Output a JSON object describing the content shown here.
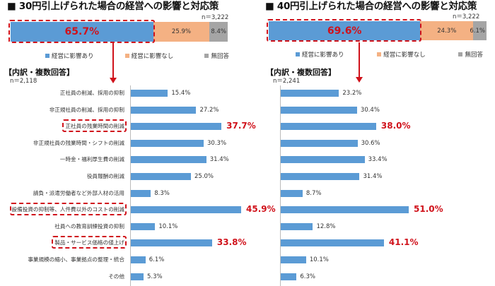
{
  "colors": {
    "blue": "#5b9bd5",
    "orange": "#f4b183",
    "gray": "#a5a5a5",
    "red": "#d0121b"
  },
  "legend": [
    "経営に影響あり",
    "経営に影響なし",
    "無回答"
  ],
  "chart_data": [
    {
      "type": "bar",
      "title": "■ 30円引上げられた場合の経営への影響と対応策",
      "overall": {
        "n": "n＝3,222",
        "values": [
          65.7,
          25.9,
          8.4
        ],
        "labels": [
          "65.7%",
          "25.9%",
          "8.4%"
        ]
      },
      "breakdown_title": "【内訳・複数回答】",
      "breakdown_n": "n＝2,118",
      "categories": [
        "正社員の削減、採用の抑制",
        "非正規社員の削減、採用の抑制",
        "正社員の残業時間の削減",
        "非正規社員の残業時間・シフトの削減",
        "一時金・福利厚生費の削減",
        "役員報酬の削減",
        "請負・派遣労働者など外部人材の活用",
        "設備投資の抑制等、人件費以外のコストの削減",
        "社員への教育訓練投資の抑制",
        "製品・サービス価格の値上げ",
        "事業規模の縮小、事業拠点の整理・統合",
        "その他"
      ],
      "values": [
        15.4,
        27.2,
        37.7,
        30.3,
        31.4,
        25.0,
        8.3,
        45.9,
        10.1,
        33.8,
        6.1,
        5.3
      ],
      "value_labels": [
        "15.4%",
        "27.2%",
        "37.7%",
        "30.3%",
        "31.4%",
        "25.0%",
        "8.3%",
        "45.9%",
        "10.1%",
        "33.8%",
        "6.1%",
        "5.3%"
      ],
      "highlighted": [
        2,
        7,
        9
      ]
    },
    {
      "type": "bar",
      "title": "■ 40円引上げられた場合の経営への影響と対応策",
      "overall": {
        "n": "n＝3,222",
        "values": [
          69.6,
          24.3,
          6.1
        ],
        "labels": [
          "69.6%",
          "24.3%",
          "6.1%"
        ]
      },
      "breakdown_title": "【内訳・複数回答】",
      "breakdown_n": "n＝2,241",
      "values": [
        23.2,
        30.4,
        38.0,
        30.6,
        33.4,
        31.4,
        8.7,
        51.0,
        12.8,
        41.1,
        10.1,
        6.3
      ],
      "value_labels": [
        "23.2%",
        "30.4%",
        "38.0%",
        "30.6%",
        "33.4%",
        "31.4%",
        "8.7%",
        "51.0%",
        "12.8%",
        "41.1%",
        "10.1%",
        "6.3%"
      ],
      "highlighted": [
        2,
        7,
        9
      ]
    }
  ]
}
